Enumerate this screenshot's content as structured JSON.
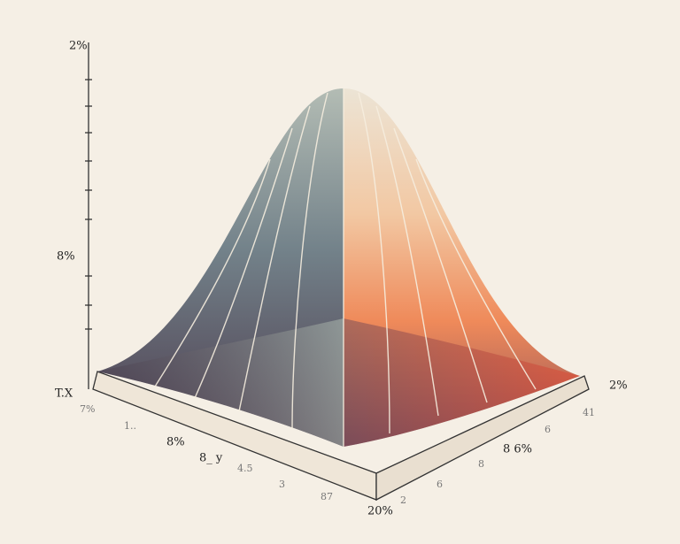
{
  "labels": [
    "2%",
    "8%",
    "T.X",
    "7%",
    "1..",
    "8%",
    "8_ y",
    "4.5",
    "3",
    "87",
    "20%",
    "2%",
    "41",
    "6",
    "8 6%",
    "8",
    "6",
    "2"
  ]
}
